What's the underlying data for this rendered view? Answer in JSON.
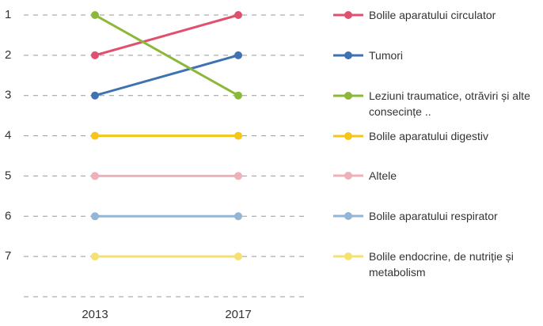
{
  "chart_data": {
    "type": "line",
    "categories": [
      "2013",
      "2017"
    ],
    "series": [
      {
        "name": "Bolile aparatului circulator",
        "color": "#e0506e",
        "values": [
          2,
          1
        ]
      },
      {
        "name": "Tumori",
        "color": "#3f72b0",
        "values": [
          3,
          2
        ]
      },
      {
        "name": "Leziuni traumatice, otrăviri și alte consecințe ..",
        "color": "#8cb83a",
        "values": [
          1,
          3
        ]
      },
      {
        "name": "Bolile aparatului digestiv",
        "color": "#f5c518",
        "values": [
          4,
          4
        ]
      },
      {
        "name": "Altele",
        "color": "#eeb0b9",
        "values": [
          5,
          5
        ]
      },
      {
        "name": "Bolile aparatului respirator",
        "color": "#93b5d6",
        "values": [
          6,
          6
        ]
      },
      {
        "name": "Bolile endocrine, de nutriție și metabolism",
        "color": "#f5e070",
        "values": [
          7,
          7
        ]
      }
    ],
    "ylim": [
      1,
      8
    ],
    "yticks": [
      1,
      2,
      3,
      4,
      5,
      6,
      7
    ],
    "y_inverted": true,
    "grid": true,
    "legend": "right"
  }
}
